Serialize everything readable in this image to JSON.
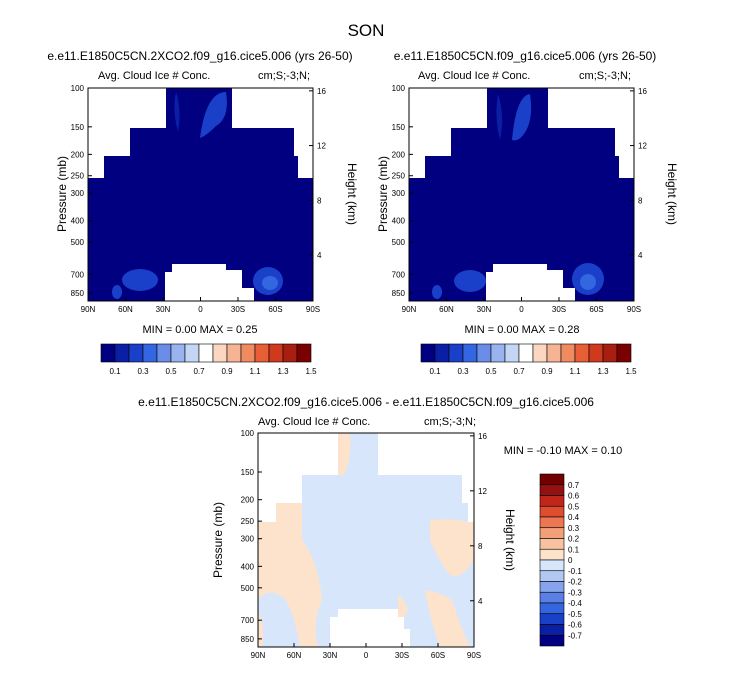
{
  "page": {
    "suptitle": "SON",
    "footnote": "MIN = -0.10 MAX = 0.10"
  },
  "colors": {
    "ctrl_levels": [
      "#000080",
      "#0a1fa3",
      "#1a40c9",
      "#3366e0",
      "#6a8ee8",
      "#98b3f0",
      "#c3d6f5",
      "#ffffff",
      "#fbd6c0",
      "#f5b594",
      "#ef8b60",
      "#e85e36",
      "#cf3a1f",
      "#a81e10",
      "#7a0000"
    ],
    "diff_levels": [
      "#000080",
      "#0a1fa3",
      "#1a40c9",
      "#3366e0",
      "#5a80e6",
      "#86a3ec",
      "#b1c8f3",
      "#d7e6fb",
      "#fde3cc",
      "#f8c2a1",
      "#f3a07a",
      "#eb7853",
      "#de4d2d",
      "#c0271a",
      "#931111",
      "#730000"
    ],
    "frame": "#000000"
  },
  "chart_data": [
    {
      "type": "heatmap",
      "panel": "top-left",
      "title": "e.e11.E1850C5CN.2XCO2.f09_g16.cice5.006 (yrs 26-50)",
      "subtitle_left": "Avg. Cloud Ice # Conc.",
      "subtitle_right": "cm;S;-3;N;",
      "xlabel": "",
      "ylabel": "Pressure (mb)",
      "ylabel_right": "Height (km)",
      "x_ticks": [
        "90N",
        "60N",
        "30N",
        "0",
        "30S",
        "60S",
        "90S"
      ],
      "y_ticks": [
        "100",
        "150",
        "200",
        "250",
        "300",
        "400",
        "500",
        "700",
        "850"
      ],
      "y_ticks_right": [
        "16",
        "12",
        "8",
        "4"
      ],
      "min_max": "MIN =  0.00  MAX =  0.25",
      "colorbar_labels": [
        "0.1",
        "0.3",
        "0.5",
        "0.7",
        "0.9",
        "1.1",
        "1.3",
        "1.5"
      ],
      "zmin": 0.0,
      "zmax": 0.25
    },
    {
      "type": "heatmap",
      "panel": "top-right",
      "title": "e.e11.E1850C5CN.f09_g16.cice5.006 (yrs 26-50)",
      "subtitle_left": "Avg. Cloud Ice # Conc.",
      "subtitle_right": "cm;S;-3;N;",
      "xlabel": "",
      "ylabel": "Pressure (mb)",
      "ylabel_right": "Height (km)",
      "x_ticks": [
        "90N",
        "60N",
        "30N",
        "0",
        "30S",
        "60S",
        "90S"
      ],
      "y_ticks": [
        "100",
        "150",
        "200",
        "250",
        "300",
        "400",
        "500",
        "700",
        "850"
      ],
      "y_ticks_right": [
        "16",
        "12",
        "8",
        "4"
      ],
      "min_max": "MIN =  0.00  MAX =  0.28",
      "colorbar_labels": [
        "0.1",
        "0.3",
        "0.5",
        "0.7",
        "0.9",
        "1.1",
        "1.3",
        "1.5"
      ],
      "zmin": 0.0,
      "zmax": 0.28
    },
    {
      "type": "heatmap",
      "panel": "bottom",
      "title": "e.e11.E1850C5CN.2XCO2.f09_g16.cice5.006 - e.e11.E1850C5CN.f09_g16.cice5.006",
      "subtitle_left": "Avg. Cloud Ice # Conc.",
      "subtitle_right": "cm;S;-3;N;",
      "xlabel": "",
      "ylabel": "Pressure (mb)",
      "ylabel_right": "Height (km)",
      "x_ticks": [
        "90N",
        "60N",
        "30N",
        "0",
        "30S",
        "60S",
        "90S"
      ],
      "y_ticks": [
        "100",
        "150",
        "200",
        "250",
        "300",
        "400",
        "500",
        "700",
        "850"
      ],
      "y_ticks_right": [
        "16",
        "12",
        "8",
        "4"
      ],
      "min_max": "MIN = -0.10  MAX =  0.10",
      "colorbar_labels": [
        "0.7",
        "0.6",
        "0.5",
        "0.4",
        "0.3",
        "0.2",
        "0.1",
        "0",
        "-0.1",
        "-0.2",
        "-0.3",
        "-0.4",
        "-0.5",
        "-0.6",
        "-0.7"
      ],
      "zmin": -0.1,
      "zmax": 0.1
    }
  ]
}
